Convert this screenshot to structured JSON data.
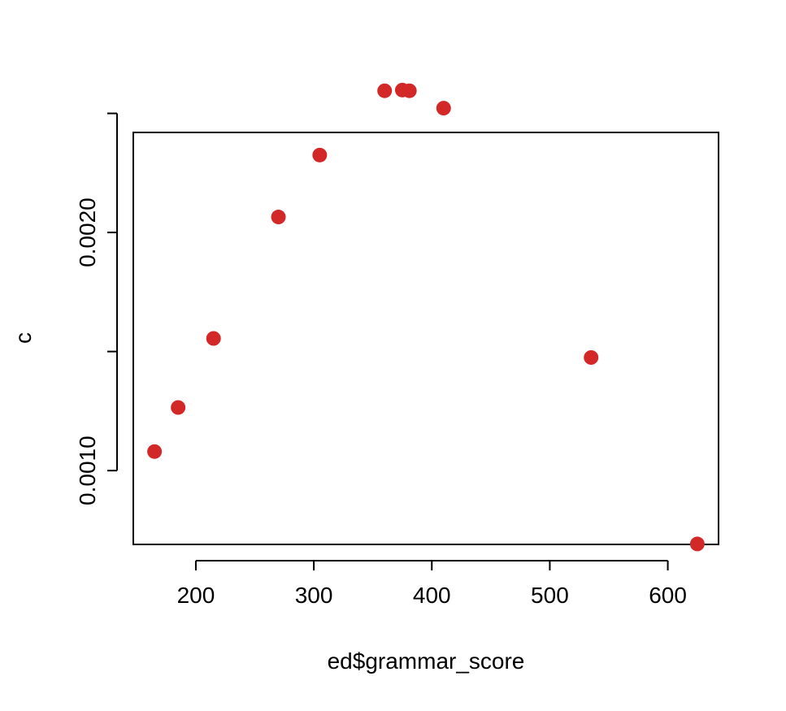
{
  "chart_data": {
    "type": "scatter",
    "xlabel": "ed$grammar_score",
    "ylabel": "c",
    "xlim": [
      147,
      643
    ],
    "ylim": [
      0.00069,
      0.00242
    ],
    "x_ticks": [
      200,
      300,
      400,
      500,
      600
    ],
    "x_tick_labels": [
      "200",
      "300",
      "400",
      "500",
      "600"
    ],
    "y_ticks": [
      0.001,
      0.0015,
      0.002,
      0.0025
    ],
    "y_tick_labels": [
      "0.0010",
      "",
      "0.0020",
      ""
    ],
    "marker_color": "#d32828",
    "grid": false,
    "legend": "none",
    "points": [
      {
        "x": 165,
        "y": 0.00108
      },
      {
        "x": 185,
        "y": 0.001265
      },
      {
        "x": 215,
        "y": 0.001555
      },
      {
        "x": 270,
        "y": 0.002065
      },
      {
        "x": 305,
        "y": 0.002325
      },
      {
        "x": 360,
        "y": 0.002595
      },
      {
        "x": 375,
        "y": 0.002598
      },
      {
        "x": 381,
        "y": 0.002595
      },
      {
        "x": 410,
        "y": 0.002522
      },
      {
        "x": 535,
        "y": 0.001475
      },
      {
        "x": 625,
        "y": 0.000692
      }
    ]
  }
}
